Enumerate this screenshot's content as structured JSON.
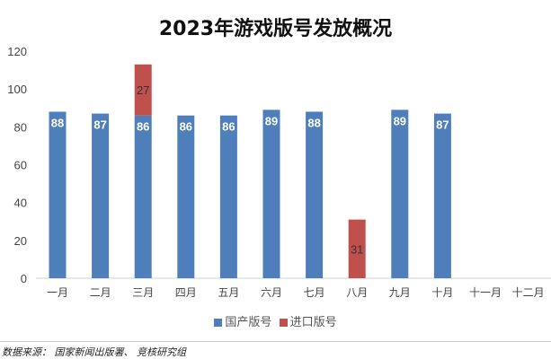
{
  "chart_data": {
    "type": "bar",
    "stacked": true,
    "title": "2023年游戏版号发放概况",
    "categories": [
      "一月",
      "二月",
      "三月",
      "四月",
      "五月",
      "六月",
      "七月",
      "八月",
      "九月",
      "十月",
      "十一月",
      "十二月"
    ],
    "series": [
      {
        "name": "国产版号",
        "color": "#4f7fba",
        "values": [
          88,
          87,
          86,
          86,
          86,
          89,
          88,
          null,
          89,
          87,
          null,
          null
        ]
      },
      {
        "name": "进口版号",
        "color": "#c0504d",
        "values": [
          null,
          null,
          27,
          null,
          null,
          null,
          null,
          31,
          null,
          null,
          null,
          null
        ]
      }
    ],
    "ylim": [
      0,
      120
    ],
    "yticks": [
      0,
      20,
      40,
      60,
      80,
      100,
      120
    ],
    "grid": false,
    "legend": "bottom"
  },
  "source": "数据来源： 国家新闻出版署、 竞核研究组"
}
